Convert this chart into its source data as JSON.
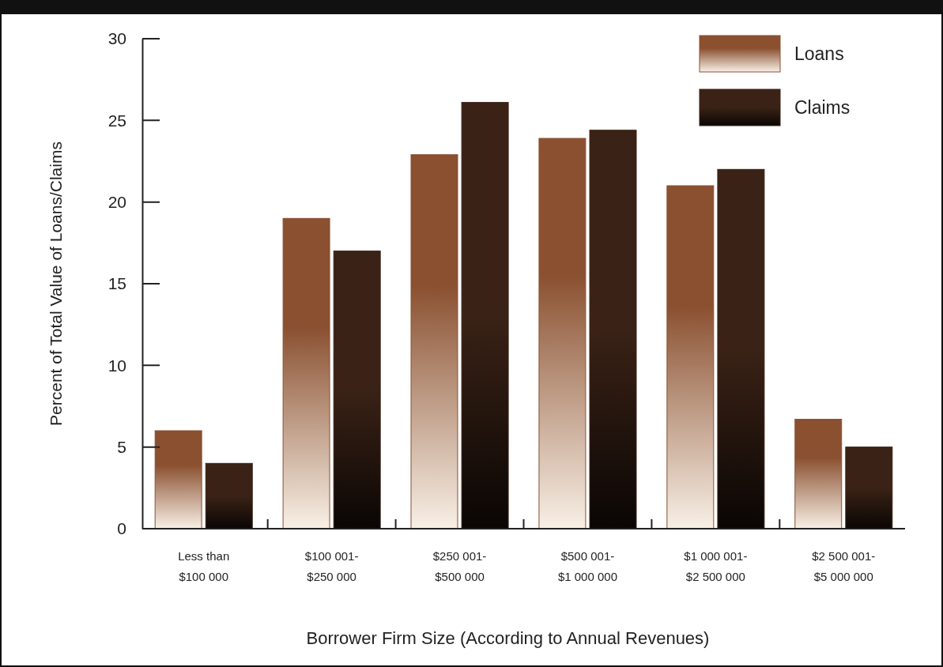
{
  "chart_data": {
    "type": "bar",
    "xlabel": "Borrower Firm Size (According to Annual Revenues)",
    "ylabel": "Percent of Total Value of Loans/Claims",
    "categories": [
      "Less than\n$100 000",
      "$100 001-\n$250 000",
      "$250 001-\n$500 000",
      "$500 001-\n$1 000 000",
      "$1 000 001-\n$2 500 000",
      "$2 500 001-\n$5 000 000"
    ],
    "series": [
      {
        "name": "Loans",
        "color": "#8a5030",
        "values": [
          6,
          19,
          22.9,
          23.9,
          21,
          6.7
        ]
      },
      {
        "name": "Claims",
        "color": "#3a2216",
        "values": [
          4,
          17,
          26.1,
          24.4,
          22,
          5
        ]
      }
    ],
    "ylim": [
      0,
      30
    ],
    "yticks": [
      0,
      5,
      10,
      15,
      20,
      25,
      30
    ],
    "grid": false,
    "legend": "top right"
  }
}
